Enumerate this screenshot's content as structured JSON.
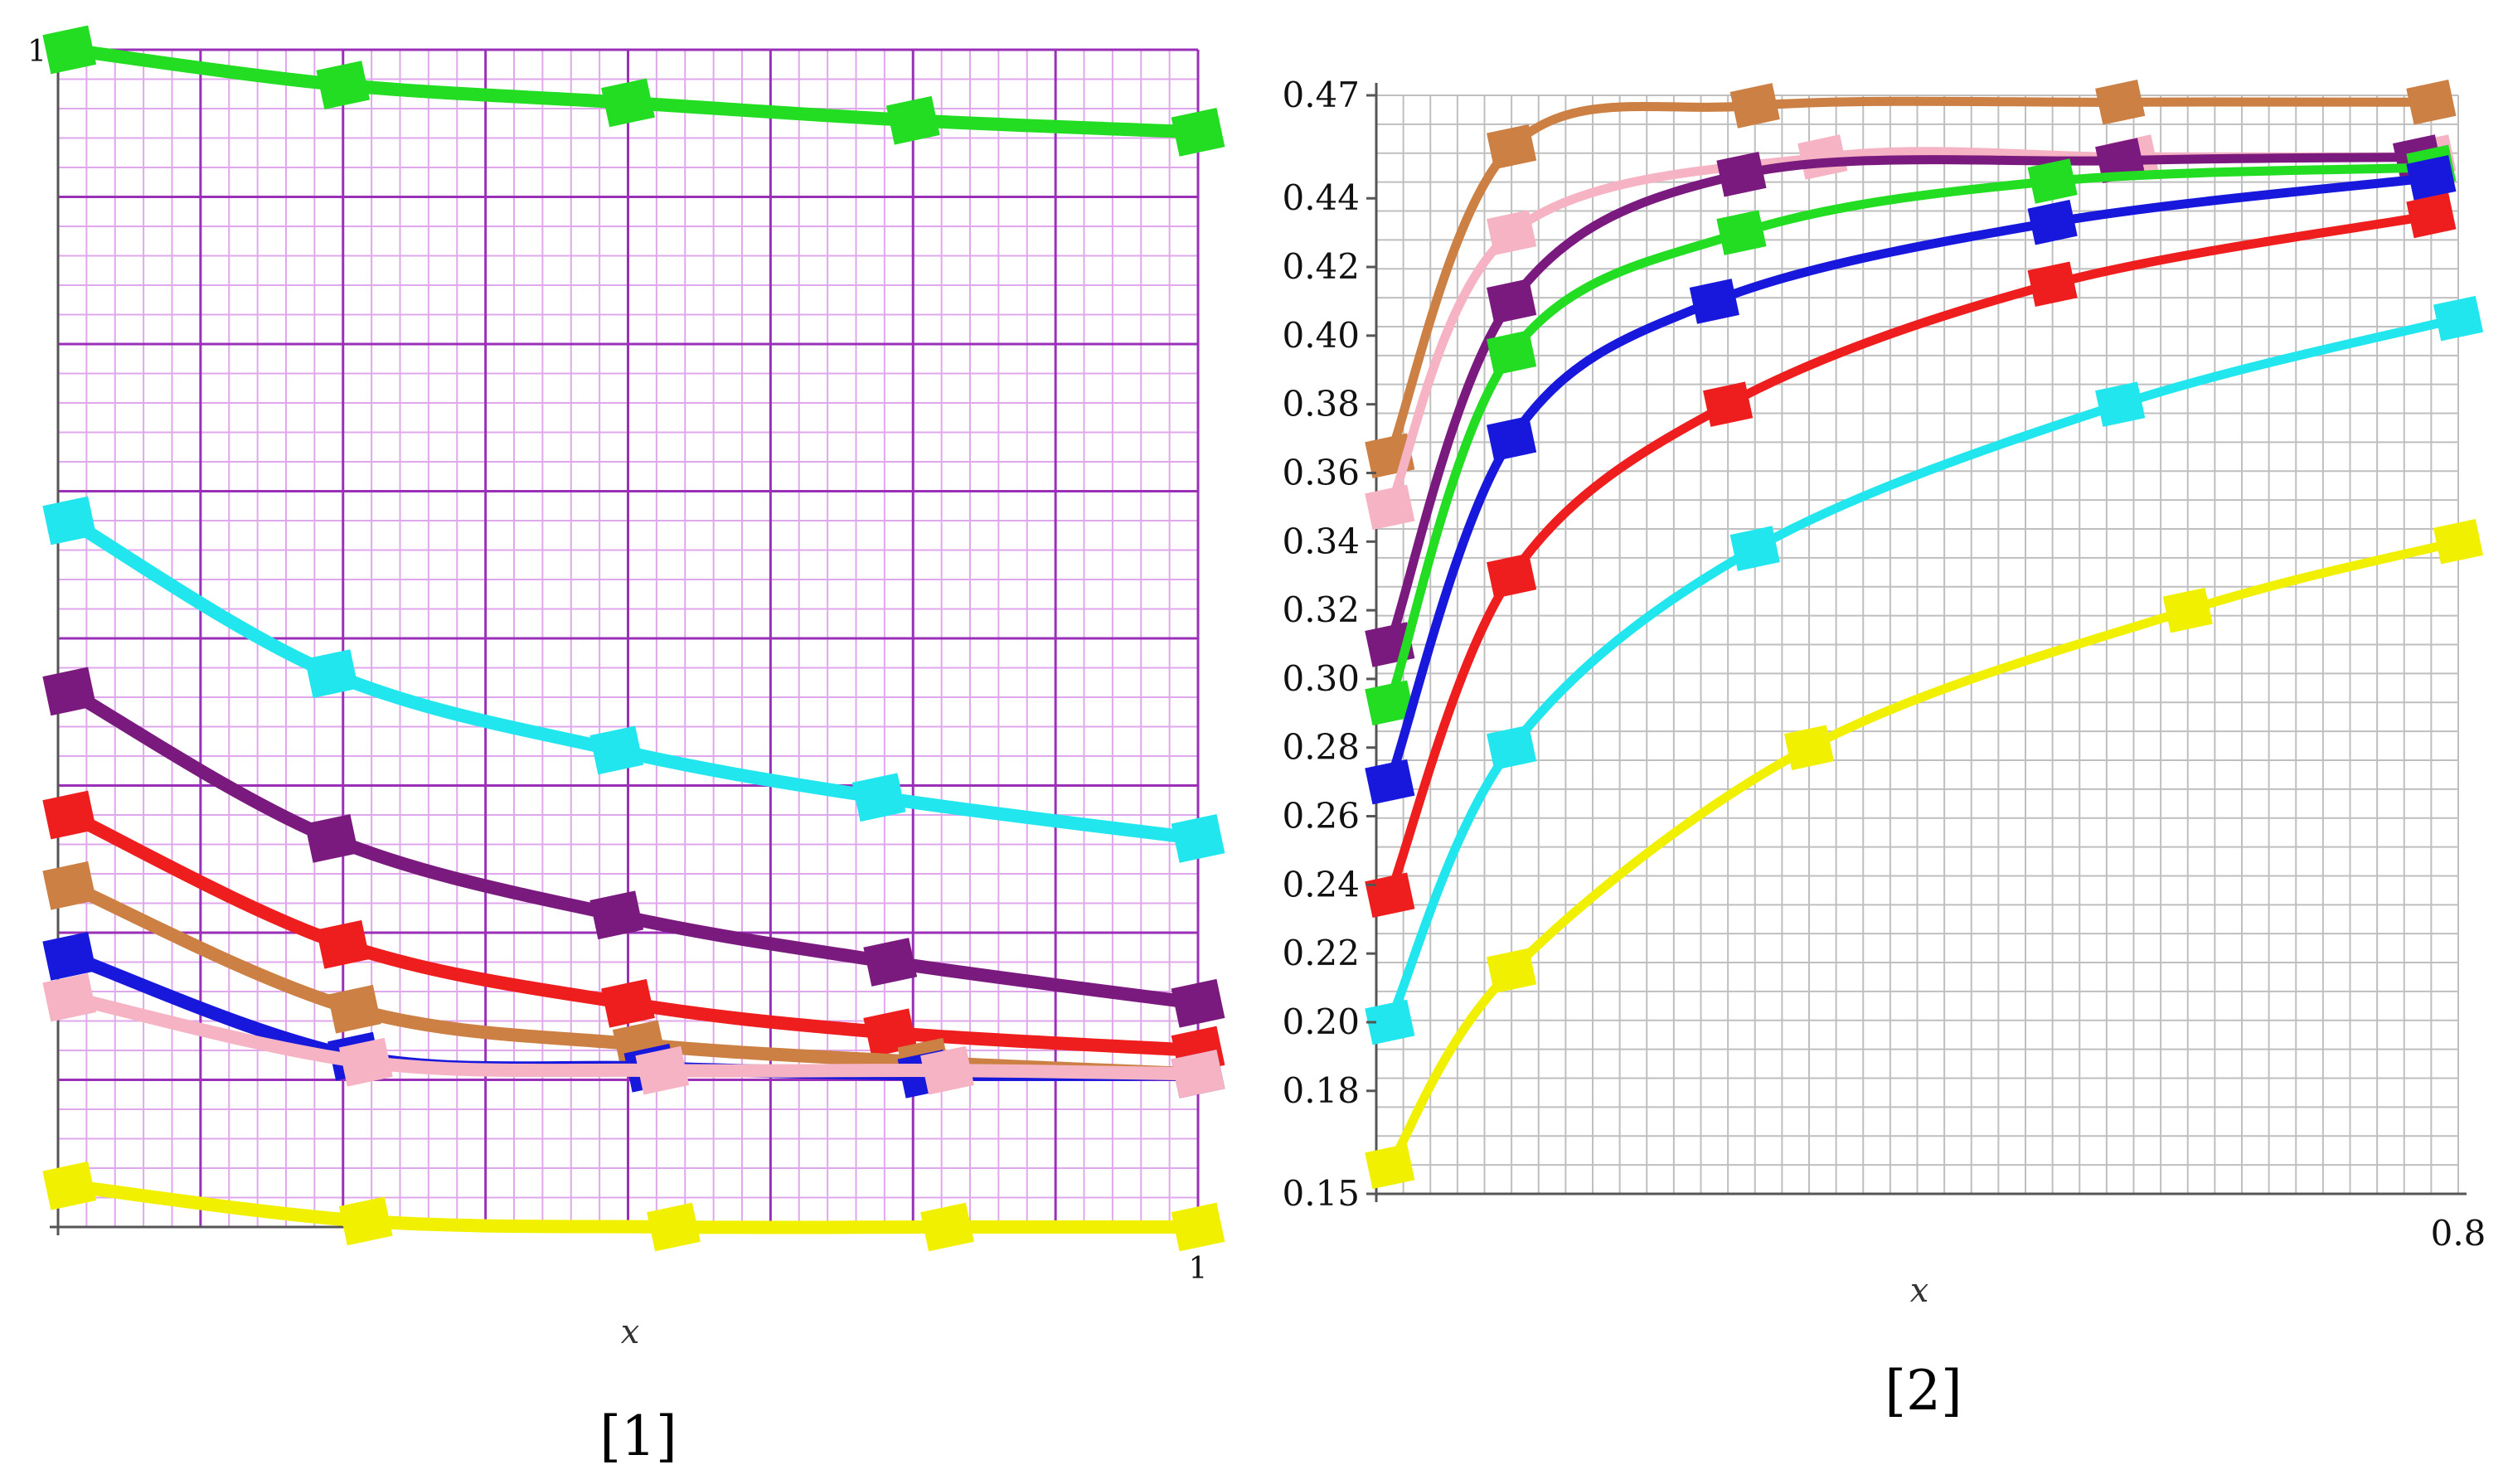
{
  "chart_data": [
    {
      "id": "panel-1",
      "type": "line",
      "panel_label": "[1]",
      "xlabel": "x",
      "ylabel": "",
      "xlim": [
        0,
        1
      ],
      "ylim": [
        0,
        1
      ],
      "x_tick_labels": [
        {
          "value": 1,
          "label": "1"
        }
      ],
      "y_tick_labels": [
        {
          "value": 1,
          "label": "1"
        }
      ],
      "grid": true,
      "grid_color": "#9b30b8",
      "grid_minor_color": "#e0a8ec",
      "series": [
        {
          "name": "green",
          "color": "#22dd22",
          "values": [
            [
              0.01,
              1.0
            ],
            [
              0.25,
              0.97
            ],
            [
              0.5,
              0.955
            ],
            [
              0.75,
              0.94
            ],
            [
              1.0,
              0.93
            ]
          ]
        },
        {
          "name": "cyan",
          "color": "#22e6ee",
          "values": [
            [
              0.01,
              0.6
            ],
            [
              0.24,
              0.47
            ],
            [
              0.49,
              0.405
            ],
            [
              0.72,
              0.365
            ],
            [
              1.0,
              0.33
            ]
          ]
        },
        {
          "name": "purple",
          "color": "#7a1a7e",
          "values": [
            [
              0.01,
              0.455
            ],
            [
              0.24,
              0.33
            ],
            [
              0.49,
              0.265
            ],
            [
              0.73,
              0.225
            ],
            [
              1.0,
              0.19
            ]
          ]
        },
        {
          "name": "red",
          "color": "#ee1e1e",
          "values": [
            [
              0.01,
              0.35
            ],
            [
              0.25,
              0.24
            ],
            [
              0.5,
              0.19
            ],
            [
              0.73,
              0.165
            ],
            [
              1.0,
              0.15
            ]
          ]
        },
        {
          "name": "brown",
          "color": "#cc8044",
          "values": [
            [
              0.01,
              0.29
            ],
            [
              0.26,
              0.185
            ],
            [
              0.51,
              0.155
            ],
            [
              0.76,
              0.14
            ],
            [
              1.0,
              0.13
            ]
          ]
        },
        {
          "name": "blue",
          "color": "#1818dd",
          "values": [
            [
              0.01,
              0.23
            ],
            [
              0.26,
              0.145
            ],
            [
              0.52,
              0.135
            ],
            [
              0.76,
              0.13
            ],
            [
              1.0,
              0.13
            ]
          ]
        },
        {
          "name": "pink",
          "color": "#f5b3c3",
          "values": [
            [
              0.01,
              0.195
            ],
            [
              0.27,
              0.14
            ],
            [
              0.53,
              0.133
            ],
            [
              0.78,
              0.133
            ],
            [
              1.0,
              0.13
            ]
          ]
        },
        {
          "name": "yellow",
          "color": "#f0f000",
          "values": [
            [
              0.01,
              0.035
            ],
            [
              0.27,
              0.005
            ],
            [
              0.54,
              0.0
            ],
            [
              0.78,
              0.0
            ],
            [
              1.0,
              0.0
            ]
          ]
        }
      ]
    },
    {
      "id": "panel-2",
      "type": "line",
      "panel_label": "[2]",
      "xlabel": "x",
      "ylabel": "",
      "xlim": [
        0,
        0.8
      ],
      "ylim": [
        0.15,
        0.47
      ],
      "x_tick_labels": [
        {
          "value": 0.8,
          "label": "0.8"
        }
      ],
      "y_tick_labels": [
        {
          "value": 0.15,
          "label": "0.15"
        },
        {
          "value": 0.18,
          "label": "0.18"
        },
        {
          "value": 0.2,
          "label": "0.20"
        },
        {
          "value": 0.22,
          "label": "0.22"
        },
        {
          "value": 0.24,
          "label": "0.24"
        },
        {
          "value": 0.26,
          "label": "0.26"
        },
        {
          "value": 0.28,
          "label": "0.28"
        },
        {
          "value": 0.3,
          "label": "0.30"
        },
        {
          "value": 0.32,
          "label": "0.32"
        },
        {
          "value": 0.34,
          "label": "0.34"
        },
        {
          "value": 0.36,
          "label": "0.36"
        },
        {
          "value": 0.38,
          "label": "0.38"
        },
        {
          "value": 0.4,
          "label": "0.40"
        },
        {
          "value": 0.42,
          "label": "0.42"
        },
        {
          "value": 0.44,
          "label": "0.44"
        },
        {
          "value": 0.47,
          "label": "0.47"
        }
      ],
      "grid": true,
      "grid_color": "#bfbfbf",
      "series": [
        {
          "name": "brown",
          "color": "#cc8044",
          "values": [
            [
              0.01,
              0.365
            ],
            [
              0.1,
              0.455
            ],
            [
              0.28,
              0.467
            ],
            [
              0.55,
              0.468
            ],
            [
              0.78,
              0.468
            ]
          ]
        },
        {
          "name": "pink",
          "color": "#f5b3c3",
          "values": [
            [
              0.01,
              0.35
            ],
            [
              0.1,
              0.43
            ],
            [
              0.33,
              0.452
            ],
            [
              0.56,
              0.452
            ],
            [
              0.78,
              0.452
            ]
          ]
        },
        {
          "name": "purple",
          "color": "#7a1a7e",
          "values": [
            [
              0.01,
              0.31
            ],
            [
              0.1,
              0.41
            ],
            [
              0.27,
              0.447
            ],
            [
              0.55,
              0.451
            ],
            [
              0.77,
              0.452
            ]
          ]
        },
        {
          "name": "green",
          "color": "#22dd22",
          "values": [
            [
              0.01,
              0.293
            ],
            [
              0.1,
              0.395
            ],
            [
              0.27,
              0.43
            ],
            [
              0.5,
              0.445
            ],
            [
              0.78,
              0.449
            ]
          ]
        },
        {
          "name": "blue",
          "color": "#1818dd",
          "values": [
            [
              0.01,
              0.27
            ],
            [
              0.1,
              0.37
            ],
            [
              0.25,
              0.41
            ],
            [
              0.5,
              0.433
            ],
            [
              0.78,
              0.446
            ]
          ]
        },
        {
          "name": "red",
          "color": "#ee1e1e",
          "values": [
            [
              0.01,
              0.237
            ],
            [
              0.1,
              0.33
            ],
            [
              0.26,
              0.38
            ],
            [
              0.5,
              0.415
            ],
            [
              0.78,
              0.435
            ]
          ]
        },
        {
          "name": "cyan",
          "color": "#22e6ee",
          "values": [
            [
              0.01,
              0.2
            ],
            [
              0.1,
              0.28
            ],
            [
              0.28,
              0.338
            ],
            [
              0.55,
              0.38
            ],
            [
              0.8,
              0.405
            ]
          ]
        },
        {
          "name": "yellow",
          "color": "#f0f000",
          "values": [
            [
              0.01,
              0.158
            ],
            [
              0.1,
              0.215
            ],
            [
              0.32,
              0.28
            ],
            [
              0.6,
              0.32
            ],
            [
              0.8,
              0.34
            ]
          ]
        }
      ]
    }
  ]
}
